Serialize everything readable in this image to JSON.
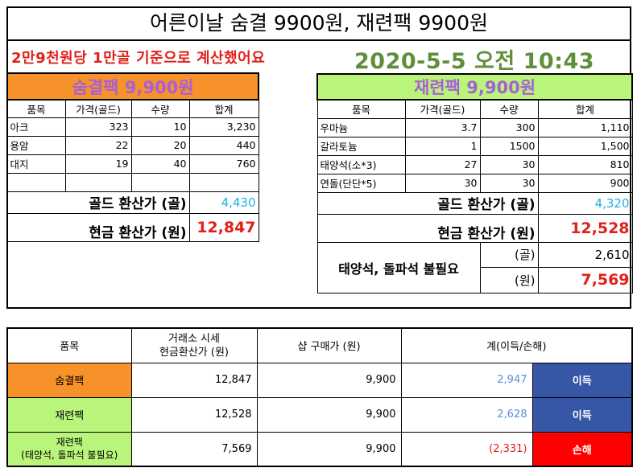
{
  "title": "어른이날 숨결 9900원, 재련팩 9900원",
  "note": "2만9천원당 1만골 기준으로 계산했어요",
  "datetime": "2020-5-5 오전 10:43",
  "colors": {
    "orange": "#f7922a",
    "green": "#b9f57a",
    "purple": "#a860d8",
    "blue_tag": "#3656a6",
    "red_tag": "#ff0000",
    "profit_text": "#5a8fd8",
    "loss_text": "#e0201a"
  },
  "left": {
    "header": "숨결팩 9,900원",
    "columns": [
      "품목",
      "가격(골드)",
      "수량",
      "합계"
    ],
    "rows": [
      [
        "아크",
        "323",
        "10",
        "3,230"
      ],
      [
        "용암",
        "22",
        "20",
        "440"
      ],
      [
        "대지",
        "19",
        "40",
        "760"
      ],
      [
        "",
        "",
        "",
        ""
      ]
    ],
    "gold_label": "골드 환산가 (골)",
    "gold_value": "4,430",
    "cash_label": "현금 환산가 (원)",
    "cash_value": "12,847"
  },
  "right": {
    "header": "재련팩 9,900원",
    "columns": [
      "품목",
      "가격(골드)",
      "수량",
      "합계"
    ],
    "rows": [
      [
        "우마늄",
        "3.7",
        "300",
        "1,110"
      ],
      [
        "갈라토늄",
        "1",
        "1500",
        "1,500"
      ],
      [
        "태양석(소*3)",
        "27",
        "30",
        "810"
      ],
      [
        "연돌(단단*5)",
        "30",
        "30",
        "900"
      ]
    ],
    "gold_label": "골드 환산가 (골)",
    "gold_value": "4,320",
    "cash_label": "현금 환산가 (원)",
    "cash_value": "12,528",
    "extra_label": "태양석, 돌파석 불필요",
    "extra_gold_unit": "(골)",
    "extra_gold_value": "2,610",
    "extra_cash_unit": "(원)",
    "extra_cash_value": "7,569"
  },
  "summary": {
    "columns": [
      "품목",
      "거래소 시세",
      "현금환산가  (원)",
      "샵 구매가  (원)",
      "계(이득/손해)"
    ],
    "rows": [
      {
        "name": "숨결팩",
        "sub": "",
        "market": "12,847",
        "shop": "9,900",
        "diff": "2,947",
        "result": "이득"
      },
      {
        "name": "재련팩",
        "sub": "",
        "market": "12,528",
        "shop": "9,900",
        "diff": "2,628",
        "result": "이득"
      },
      {
        "name": "재련팩",
        "sub": "(태양석, 돌파석 불필요)",
        "market": "7,569",
        "shop": "9,900",
        "diff": "(2,331)",
        "result": "손해"
      }
    ]
  }
}
